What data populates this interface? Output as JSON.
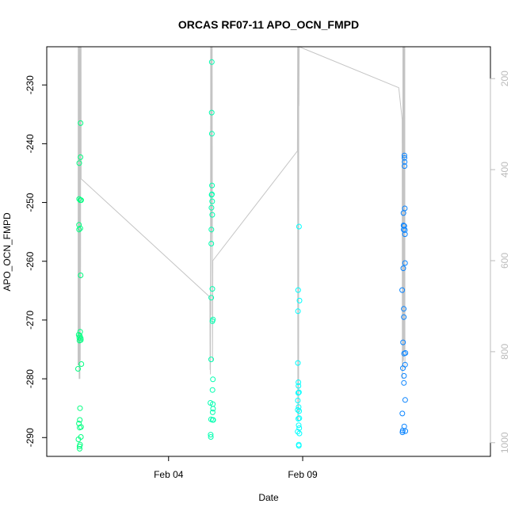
{
  "chart_data": {
    "type": "scatter",
    "title": "ORCAS RF07-11 APO_OCN_FMPD",
    "xlabel": "Date",
    "ylabel": "APO_OCN_FMPD",
    "xlim": [
      "2016-01-30T11:00",
      "2016-02-16T00:00"
    ],
    "ylim": [
      -293.2,
      -223.5
    ],
    "grid": false,
    "x_ticks": [
      {
        "value": "2016-02-04T00:00",
        "label": "Feb 04"
      },
      {
        "value": "2016-02-09T00:00",
        "label": "Feb 09"
      }
    ],
    "y_ticks": [
      -290,
      -280,
      -270,
      -260,
      -250,
      -240,
      -230
    ],
    "secondary_axis": {
      "side": "right",
      "description": "pressure, inverted",
      "color": "#bbbbbb",
      "range": [
        1030,
        130
      ],
      "ticks": [
        200,
        400,
        600,
        800,
        1000
      ]
    },
    "colors": {
      "flight_RF07": "#00ff80",
      "flight_RF08": "#00ffb0",
      "flight_RF09": "#00ffff",
      "flight_RF11": "#0a84ff",
      "pressure_line": "#c4c4c4",
      "axes": "#000000"
    },
    "flights": [
      {
        "name": "RF07",
        "color": "#00ff80",
        "points": [
          {
            "x": "2016-01-31T15:00",
            "y": -278.3
          },
          {
            "x": "2016-01-31T15:20",
            "y": -290.3
          },
          {
            "x": "2016-01-31T15:35",
            "y": -272.5
          },
          {
            "x": "2016-01-31T15:45",
            "y": -287.6
          },
          {
            "x": "2016-01-31T15:50",
            "y": -253.8
          },
          {
            "x": "2016-01-31T15:55",
            "y": -254.6
          },
          {
            "x": "2016-01-31T16:00",
            "y": -249.4
          },
          {
            "x": "2016-01-31T16:05",
            "y": -243.3
          },
          {
            "x": "2016-01-31T16:10",
            "y": -273.0
          },
          {
            "x": "2016-01-31T16:15",
            "y": -273.5
          },
          {
            "x": "2016-01-31T16:20",
            "y": -291.5
          },
          {
            "x": "2016-01-31T16:25",
            "y": -291.9
          },
          {
            "x": "2016-01-31T16:30",
            "y": -288.3
          },
          {
            "x": "2016-01-31T16:35",
            "y": -287.0
          },
          {
            "x": "2016-01-31T16:40",
            "y": -272.7
          },
          {
            "x": "2016-01-31T16:45",
            "y": -285.0
          },
          {
            "x": "2016-01-31T16:50",
            "y": -291.2
          },
          {
            "x": "2016-01-31T16:55",
            "y": -272.0
          },
          {
            "x": "2016-01-31T17:00",
            "y": -249.6
          },
          {
            "x": "2016-01-31T17:05",
            "y": -254.4
          },
          {
            "x": "2016-01-31T17:10",
            "y": -242.3
          },
          {
            "x": "2016-01-31T17:15",
            "y": -236.5
          },
          {
            "x": "2016-01-31T17:20",
            "y": -262.4
          },
          {
            "x": "2016-01-31T17:25",
            "y": -273.1
          },
          {
            "x": "2016-01-31T17:30",
            "y": -273.4
          },
          {
            "x": "2016-01-31T17:35",
            "y": -289.9
          },
          {
            "x": "2016-01-31T17:40",
            "y": -288.2
          },
          {
            "x": "2016-01-31T17:45",
            "y": -249.6
          },
          {
            "x": "2016-01-31T18:00",
            "y": -277.5
          }
        ]
      },
      {
        "name": "RF08",
        "color": "#00ffb0",
        "points": [
          {
            "x": "2016-02-05T13:30",
            "y": -284.1
          },
          {
            "x": "2016-02-05T13:40",
            "y": -289.5
          },
          {
            "x": "2016-02-05T13:50",
            "y": -289.9
          },
          {
            "x": "2016-02-05T14:00",
            "y": -286.9
          },
          {
            "x": "2016-02-05T14:05",
            "y": -276.7
          },
          {
            "x": "2016-02-05T14:10",
            "y": -266.2
          },
          {
            "x": "2016-02-05T14:15",
            "y": -257.0
          },
          {
            "x": "2016-02-05T14:20",
            "y": -254.6
          },
          {
            "x": "2016-02-05T14:25",
            "y": -250.9
          },
          {
            "x": "2016-02-05T14:30",
            "y": -248.7
          },
          {
            "x": "2016-02-05T14:35",
            "y": -234.7
          },
          {
            "x": "2016-02-05T14:40",
            "y": -226.1
          },
          {
            "x": "2016-02-05T14:45",
            "y": -238.3
          },
          {
            "x": "2016-02-05T14:50",
            "y": -248.6
          },
          {
            "x": "2016-02-05T14:55",
            "y": -247.1
          },
          {
            "x": "2016-02-05T15:00",
            "y": -249.8
          },
          {
            "x": "2016-02-05T15:05",
            "y": -252.1
          },
          {
            "x": "2016-02-05T15:10",
            "y": -264.7
          },
          {
            "x": "2016-02-05T15:15",
            "y": -270.2
          },
          {
            "x": "2016-02-05T15:20",
            "y": -281.9
          },
          {
            "x": "2016-02-05T15:25",
            "y": -285.7
          },
          {
            "x": "2016-02-05T15:30",
            "y": -287.0
          },
          {
            "x": "2016-02-05T15:35",
            "y": -284.3
          },
          {
            "x": "2016-02-05T15:40",
            "y": -280.1
          },
          {
            "x": "2016-02-05T15:45",
            "y": -269.9
          },
          {
            "x": "2016-02-05T15:50",
            "y": -285.1
          },
          {
            "x": "2016-02-05T15:55",
            "y": -287.0
          }
        ]
      },
      {
        "name": "RF09",
        "color": "#00ffff",
        "points": [
          {
            "x": "2016-02-08T19:30",
            "y": -289.0
          },
          {
            "x": "2016-02-08T19:35",
            "y": -285.3
          },
          {
            "x": "2016-02-08T19:40",
            "y": -283.7
          },
          {
            "x": "2016-02-08T19:45",
            "y": -277.3
          },
          {
            "x": "2016-02-08T19:50",
            "y": -268.5
          },
          {
            "x": "2016-02-08T19:55",
            "y": -264.9
          },
          {
            "x": "2016-02-08T20:00",
            "y": -282.4
          },
          {
            "x": "2016-02-08T20:05",
            "y": -286.8
          },
          {
            "x": "2016-02-08T20:10",
            "y": -280.6
          },
          {
            "x": "2016-02-08T20:15",
            "y": -281.2
          },
          {
            "x": "2016-02-08T20:20",
            "y": -284.8
          },
          {
            "x": "2016-02-08T20:25",
            "y": -287.9
          },
          {
            "x": "2016-02-08T20:30",
            "y": -291.2
          },
          {
            "x": "2016-02-08T20:35",
            "y": -291.4
          },
          {
            "x": "2016-02-08T20:40",
            "y": -282.3
          },
          {
            "x": "2016-02-08T20:45",
            "y": -254.1
          },
          {
            "x": "2016-02-08T20:50",
            "y": -285.5
          },
          {
            "x": "2016-02-08T20:55",
            "y": -288.4
          },
          {
            "x": "2016-02-08T21:00",
            "y": -286.7
          },
          {
            "x": "2016-02-08T21:05",
            "y": -289.3
          },
          {
            "x": "2016-02-08T21:10",
            "y": -266.7
          }
        ]
      },
      {
        "name": "RF11",
        "color": "#0a84ff",
        "points": [
          {
            "x": "2016-02-12T17:00",
            "y": -264.9
          },
          {
            "x": "2016-02-12T17:10",
            "y": -285.9
          },
          {
            "x": "2016-02-12T17:20",
            "y": -289.1
          },
          {
            "x": "2016-02-12T17:30",
            "y": -288.8
          },
          {
            "x": "2016-02-12T17:40",
            "y": -278.2
          },
          {
            "x": "2016-02-12T17:50",
            "y": -273.8
          },
          {
            "x": "2016-02-12T18:00",
            "y": -261.2
          },
          {
            "x": "2016-02-12T18:10",
            "y": -251.8
          },
          {
            "x": "2016-02-12T18:15",
            "y": -253.9
          },
          {
            "x": "2016-02-12T18:20",
            "y": -254.6
          },
          {
            "x": "2016-02-12T18:25",
            "y": -268.1
          },
          {
            "x": "2016-02-12T18:30",
            "y": -269.5
          },
          {
            "x": "2016-02-12T18:35",
            "y": -280.7
          },
          {
            "x": "2016-02-12T18:40",
            "y": -279.5
          },
          {
            "x": "2016-02-12T18:45",
            "y": -275.7
          },
          {
            "x": "2016-02-12T18:50",
            "y": -288.1
          },
          {
            "x": "2016-02-12T18:55",
            "y": -254.0
          },
          {
            "x": "2016-02-12T19:00",
            "y": -242.0
          },
          {
            "x": "2016-02-12T19:05",
            "y": -242.4
          },
          {
            "x": "2016-02-12T19:10",
            "y": -243.8
          },
          {
            "x": "2016-02-12T19:15",
            "y": -243.1
          },
          {
            "x": "2016-02-12T19:20",
            "y": -251.0
          },
          {
            "x": "2016-02-12T19:25",
            "y": -254.7
          },
          {
            "x": "2016-02-12T19:30",
            "y": -255.4
          },
          {
            "x": "2016-02-12T19:35",
            "y": -260.3
          },
          {
            "x": "2016-02-12T19:40",
            "y": -277.6
          },
          {
            "x": "2016-02-12T19:45",
            "y": -283.6
          },
          {
            "x": "2016-02-12T19:50",
            "y": -288.9
          },
          {
            "x": "2016-02-12T19:55",
            "y": -275.6
          }
        ]
      }
    ],
    "pressure_trace": {
      "color": "#c4c4c4",
      "points": [
        [
          "2016-01-31T15:00",
          830
        ],
        [
          "2016-01-31T15:10",
          130
        ],
        [
          "2016-01-31T15:20",
          830
        ],
        [
          "2016-01-31T15:30",
          300
        ],
        [
          "2016-01-31T15:40",
          780
        ],
        [
          "2016-01-31T15:50",
          130
        ],
        [
          "2016-01-31T16:00",
          860
        ],
        [
          "2016-01-31T16:10",
          130
        ],
        [
          "2016-01-31T16:20",
          860
        ],
        [
          "2016-01-31T16:30",
          200
        ],
        [
          "2016-01-31T16:40",
          860
        ],
        [
          "2016-01-31T16:50",
          130
        ],
        [
          "2016-01-31T17:00",
          820
        ],
        [
          "2016-01-31T17:05",
          130
        ],
        [
          "2016-01-31T17:15",
          640
        ],
        [
          "2016-01-31T17:20",
          130
        ],
        [
          "2016-01-31T17:25",
          420
        ],
        [
          "2016-01-31T17:30",
          130
        ],
        [
          "2016-01-31T17:40",
          130
        ],
        [
          "2016-01-31T17:45",
          420
        ],
        [
          "2016-02-05T13:00",
          680
        ],
        [
          "2016-02-05T13:10",
          840
        ],
        [
          "2016-02-05T13:20",
          740
        ],
        [
          "2016-02-05T13:30",
          850
        ],
        [
          "2016-02-05T13:40",
          130
        ],
        [
          "2016-02-05T13:50",
          720
        ],
        [
          "2016-02-05T14:00",
          130
        ],
        [
          "2016-02-05T14:10",
          560
        ],
        [
          "2016-02-05T14:20",
          130
        ],
        [
          "2016-02-05T14:30",
          540
        ],
        [
          "2016-02-05T14:40",
          130
        ],
        [
          "2016-02-05T14:50",
          450
        ],
        [
          "2016-02-05T15:00",
          130
        ],
        [
          "2016-02-05T15:10",
          520
        ],
        [
          "2016-02-05T15:20",
          820
        ],
        [
          "2016-02-05T15:30",
          680
        ],
        [
          "2016-02-05T15:35",
          600
        ],
        [
          "2016-02-08T19:00",
          360
        ],
        [
          "2016-02-08T19:20",
          360
        ],
        [
          "2016-02-08T19:30",
          130
        ],
        [
          "2016-02-08T19:40",
          950
        ],
        [
          "2016-02-08T19:50",
          130
        ],
        [
          "2016-02-08T20:00",
          950
        ],
        [
          "2016-02-08T20:10",
          130
        ],
        [
          "2016-02-08T20:20",
          940
        ],
        [
          "2016-02-08T20:30",
          130
        ],
        [
          "2016-02-08T20:40",
          260
        ],
        [
          "2016-02-08T20:50",
          130
        ],
        [
          "2016-02-12T14:00",
          220
        ],
        [
          "2016-02-12T17:00",
          290
        ],
        [
          "2016-02-12T17:10",
          860
        ],
        [
          "2016-02-12T17:20",
          720
        ],
        [
          "2016-02-12T17:30",
          840
        ],
        [
          "2016-02-12T17:40",
          130
        ],
        [
          "2016-02-12T17:50",
          820
        ],
        [
          "2016-02-12T18:00",
          130
        ],
        [
          "2016-02-12T18:10",
          820
        ],
        [
          "2016-02-12T18:20",
          130
        ],
        [
          "2016-02-12T18:30",
          800
        ],
        [
          "2016-02-12T18:40",
          130
        ],
        [
          "2016-02-12T18:50",
          760
        ],
        [
          "2016-02-12T19:00",
          130
        ],
        [
          "2016-02-12T19:10",
          800
        ],
        [
          "2016-02-12T19:20",
          130
        ],
        [
          "2016-02-12T19:30",
          840
        ]
      ]
    }
  }
}
